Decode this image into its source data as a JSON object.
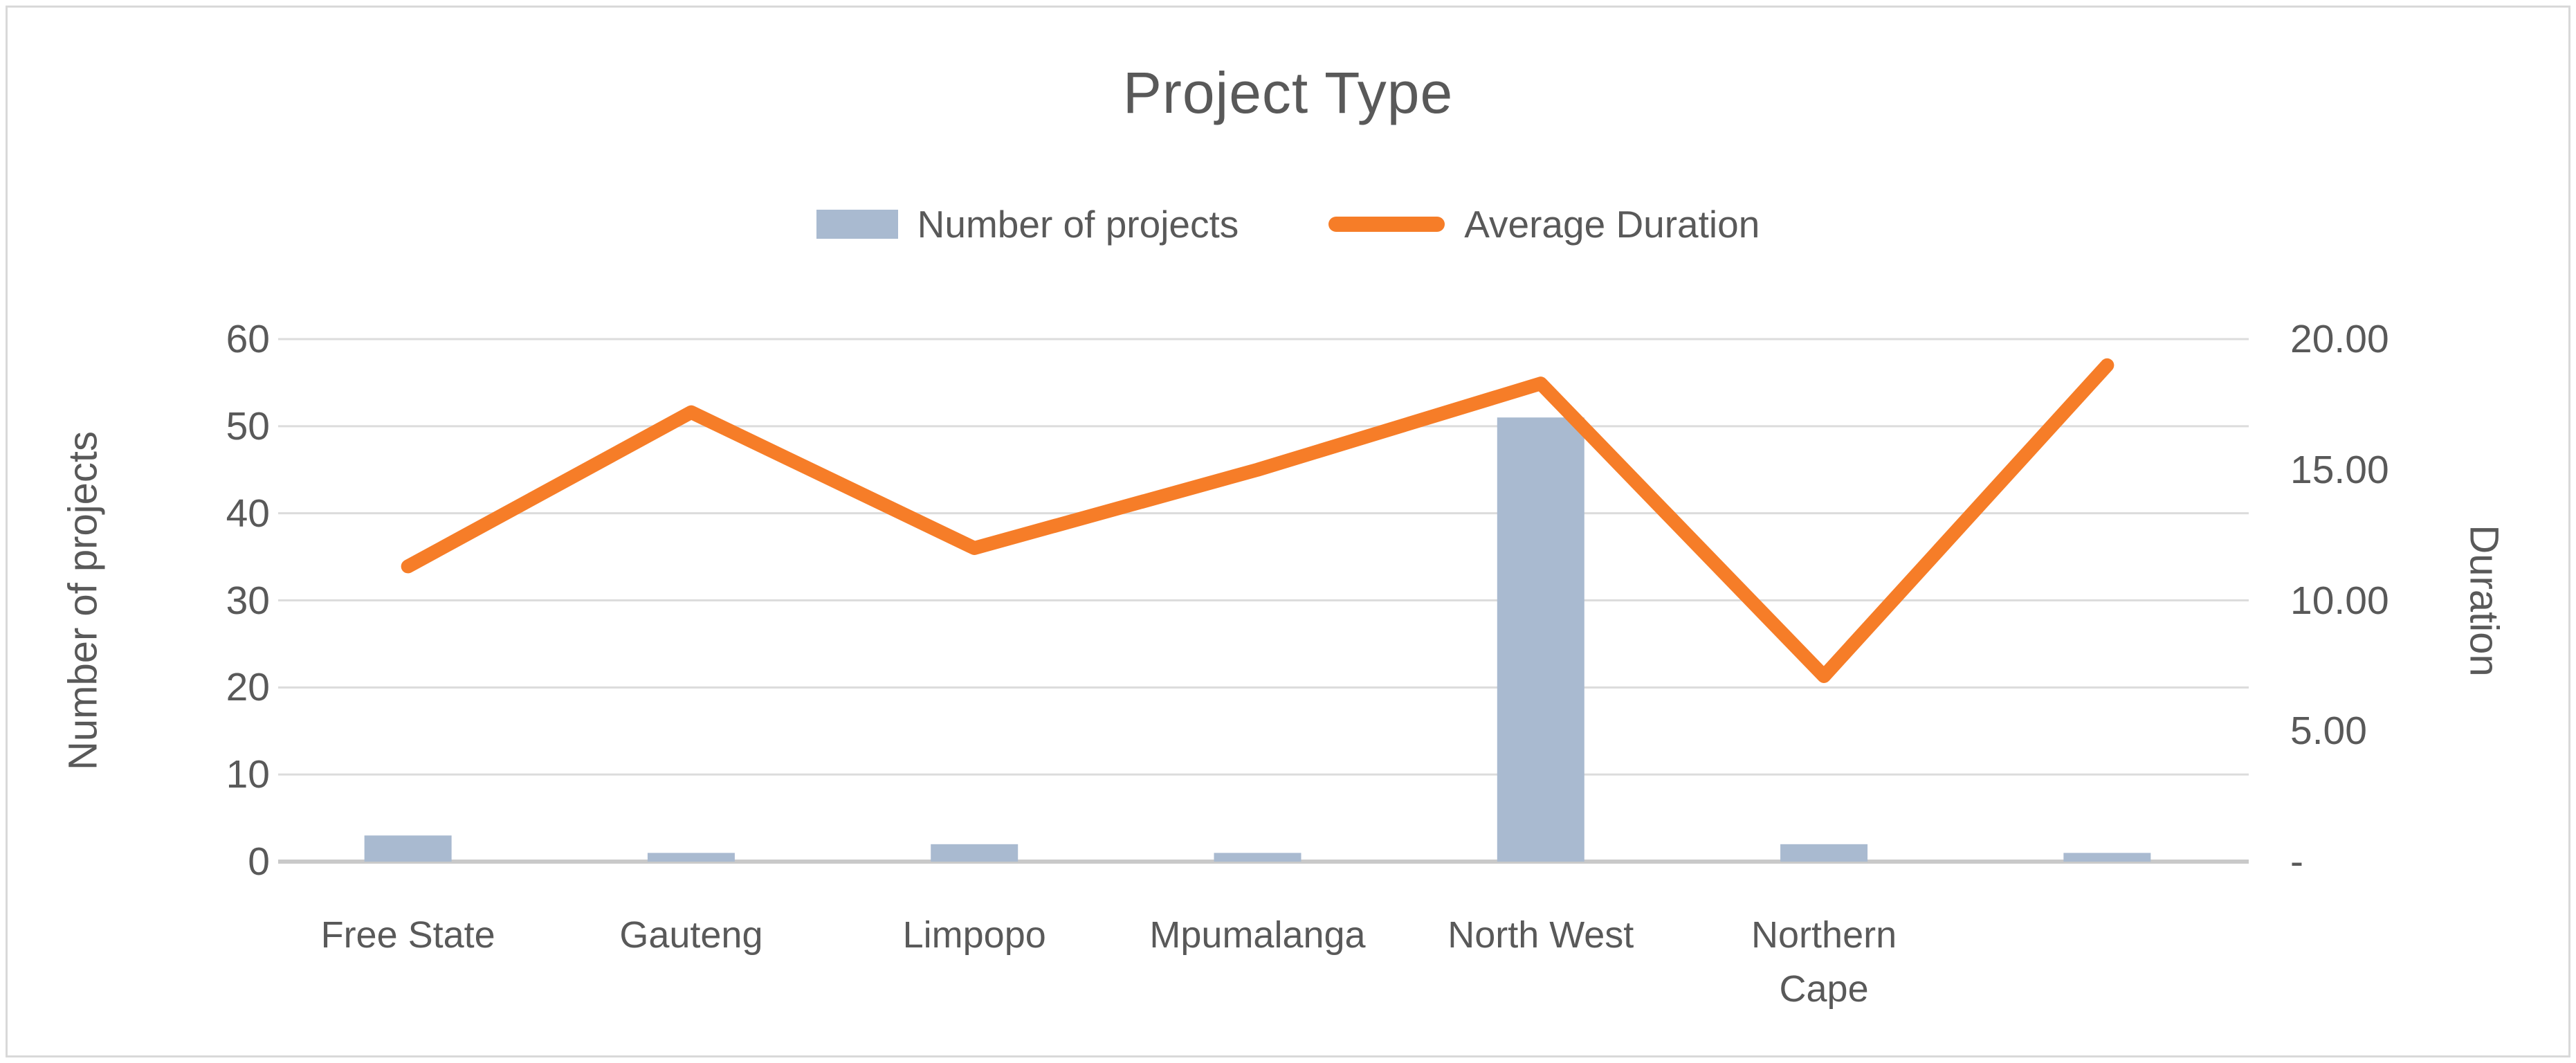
{
  "chart": {
    "title": "Project Type",
    "legend": {
      "bar_label": "Number of projects",
      "line_label": "Average Duration"
    },
    "left_axis": {
      "title": "Number of projects",
      "tick_labels": [
        "60",
        "50",
        "40",
        "30",
        "20",
        "10",
        "0"
      ]
    },
    "right_axis": {
      "title": "Duration",
      "tick_labels": [
        "20.00",
        "15.00",
        "10.00",
        "5.00",
        "-"
      ]
    },
    "colors": {
      "bar": "#a9bad0",
      "line": "#f67d28",
      "gridline": "#dcdcdc",
      "axis_line": "#c9c9c9",
      "text": "#595959",
      "border": "#d9d9d9"
    }
  },
  "chart_data": {
    "type": "bar+line combo",
    "title": "Project Type",
    "categories": [
      "Free State",
      "Gauteng",
      "Limpopo",
      "Mpumalanga",
      "North West",
      "Northern Cape",
      ""
    ],
    "series": [
      {
        "name": "Number of projects",
        "type": "bar",
        "axis": "left",
        "values": [
          3,
          1,
          2,
          1,
          51,
          2,
          1
        ]
      },
      {
        "name": "Average Duration",
        "type": "line",
        "axis": "right",
        "values": [
          11.3,
          17.2,
          12.0,
          15.0,
          18.3,
          7.1,
          19.0
        ]
      }
    ],
    "left_ylabel": "Number of projects",
    "right_ylabel": "Duration",
    "left_ylim": [
      0,
      60
    ],
    "right_ylim": [
      0,
      20
    ],
    "left_tick_step": 10,
    "right_tick_step": 5,
    "grid": true,
    "legend_position": "top"
  }
}
